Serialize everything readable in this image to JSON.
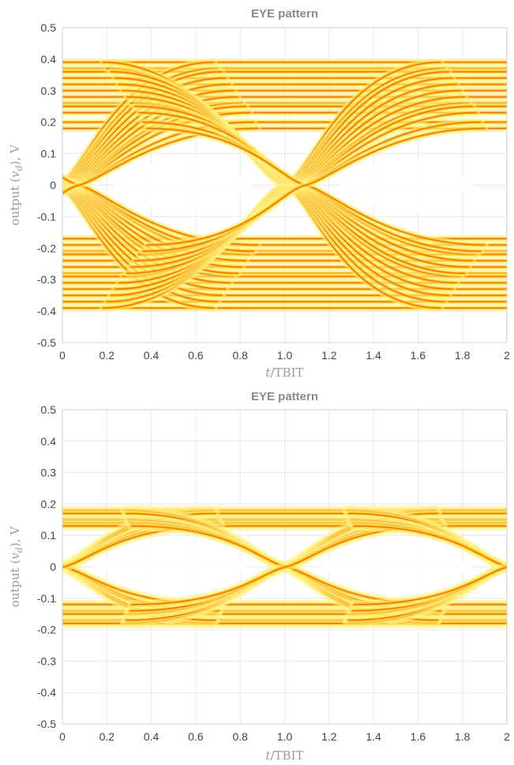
{
  "chart_data": [
    {
      "type": "heatmap",
      "title": "EYE pattern",
      "xlabel": "t/TBIT",
      "ylabel": "output (v_d), V",
      "xlim": [
        0,
        2
      ],
      "ylim": [
        -0.5,
        0.5
      ],
      "xticks": [
        "0",
        "0.2",
        "0.4",
        "0.6",
        "0.8",
        "1.0",
        "1.2",
        "1.4",
        "1.6",
        "1.8",
        "2"
      ],
      "yticks": [
        "0.5",
        "0.4",
        "0.3",
        "0.2",
        "0.1",
        "0",
        "-0.1",
        "-0.2",
        "-0.3",
        "-0.4",
        "-0.5"
      ],
      "grid": true,
      "colormap": [
        "#ffffff",
        "#fff28a",
        "#ffd21f",
        "#ff8a00",
        "#d51b00"
      ],
      "levels_high": [
        0.39,
        0.37,
        0.36,
        0.34,
        0.32,
        0.3,
        0.28,
        0.26,
        0.25,
        0.23,
        0.2,
        0.18
      ],
      "levels_low": [
        -0.17,
        -0.19,
        -0.21,
        -0.22,
        -0.24,
        -0.26,
        -0.28,
        -0.29,
        -0.31,
        -0.33,
        -0.35,
        -0.37,
        -0.39
      ],
      "crossing_t": [
        0.03,
        1.05
      ],
      "eye_opening": [
        -0.12,
        0.12
      ]
    },
    {
      "type": "heatmap",
      "title": "EYE pattern",
      "xlabel": "t/TBIT",
      "ylabel": "output (v_d), V",
      "xlim": [
        0,
        2
      ],
      "ylim": [
        -0.5,
        0.5
      ],
      "xticks": [
        "0",
        "0.2",
        "0.4",
        "0.6",
        "0.8",
        "1.0",
        "1.2",
        "1.4",
        "1.6",
        "1.8",
        "2"
      ],
      "yticks": [
        "0.5",
        "0.4",
        "0.3",
        "0.2",
        "0.1",
        "0",
        "-0.1",
        "-0.2",
        "-0.3",
        "-0.4",
        "-0.5"
      ],
      "grid": true,
      "colormap": [
        "#ffffff",
        "#fff28a",
        "#ffd21f",
        "#ff8a00",
        "#d51b00"
      ],
      "levels_high": [
        0.18,
        0.17,
        0.15,
        0.14,
        0.13
      ],
      "levels_low": [
        -0.12,
        -0.14,
        -0.15,
        -0.17,
        -0.18
      ],
      "crossing_t": [
        0.0,
        1.0,
        2.0
      ],
      "eye_opening": [
        -0.12,
        0.13
      ]
    }
  ]
}
